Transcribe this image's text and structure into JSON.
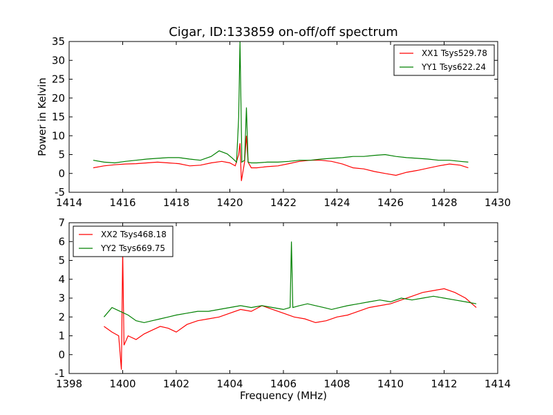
{
  "chart_data": [
    {
      "type": "line",
      "title": "Cigar, ID:133859 on-off/off spectrum",
      "xlabel": "",
      "ylabel": "Power in Kelvin",
      "xlim": [
        1414,
        1430
      ],
      "ylim": [
        -5,
        35
      ],
      "xticks": [
        1414,
        1416,
        1418,
        1420,
        1422,
        1424,
        1426,
        1428,
        1430
      ],
      "yticks": [
        -5,
        0,
        5,
        10,
        15,
        20,
        25,
        30,
        35
      ],
      "grid": false,
      "legend_position": "top-right",
      "series": [
        {
          "name": "XX1 Tsys529.78",
          "color": "#ff0000",
          "x": [
            1414.9,
            1415.3,
            1415.7,
            1416.1,
            1416.5,
            1416.9,
            1417.3,
            1417.7,
            1418.1,
            1418.5,
            1418.9,
            1419.3,
            1419.7,
            1420.0,
            1420.2,
            1420.33,
            1420.38,
            1420.43,
            1420.55,
            1420.62,
            1420.68,
            1420.8,
            1421.0,
            1421.4,
            1421.8,
            1422.2,
            1422.6,
            1423.0,
            1423.4,
            1423.8,
            1424.2,
            1424.6,
            1425.0,
            1425.4,
            1425.8,
            1426.2,
            1426.6,
            1427.0,
            1427.4,
            1427.8,
            1428.2,
            1428.6,
            1428.9
          ],
          "y": [
            1.5,
            2.0,
            2.3,
            2.5,
            2.6,
            2.8,
            3.0,
            2.8,
            2.6,
            2.0,
            2.2,
            2.8,
            3.2,
            2.8,
            2.0,
            5.0,
            8.0,
            -2.0,
            3.0,
            10.0,
            3.0,
            1.5,
            1.5,
            1.8,
            2.0,
            2.6,
            3.2,
            3.5,
            3.5,
            3.2,
            2.5,
            1.5,
            1.2,
            0.5,
            0.0,
            -0.5,
            0.3,
            0.8,
            1.4,
            2.0,
            2.5,
            2.2,
            1.5
          ]
        },
        {
          "name": "YY1 Tsys622.24",
          "color": "#008000",
          "x": [
            1414.9,
            1415.3,
            1415.7,
            1416.1,
            1416.5,
            1416.9,
            1417.3,
            1417.7,
            1418.1,
            1418.5,
            1418.9,
            1419.3,
            1419.6,
            1419.9,
            1420.1,
            1420.25,
            1420.33,
            1420.38,
            1420.45,
            1420.55,
            1420.62,
            1420.68,
            1420.8,
            1421.0,
            1421.4,
            1421.8,
            1422.2,
            1422.6,
            1423.0,
            1423.4,
            1423.8,
            1424.2,
            1424.6,
            1425.0,
            1425.4,
            1425.8,
            1426.2,
            1426.6,
            1427.0,
            1427.4,
            1427.8,
            1428.2,
            1428.6,
            1428.9
          ],
          "y": [
            3.5,
            3.0,
            2.8,
            3.2,
            3.5,
            3.8,
            4.0,
            4.2,
            4.2,
            3.8,
            3.5,
            4.5,
            6.0,
            5.2,
            4.0,
            3.0,
            15.0,
            35.0,
            3.0,
            3.5,
            17.5,
            3.0,
            2.8,
            2.8,
            3.0,
            3.0,
            3.2,
            3.5,
            3.5,
            3.8,
            4.0,
            4.2,
            4.5,
            4.5,
            4.8,
            5.0,
            4.5,
            4.2,
            4.0,
            3.8,
            3.5,
            3.5,
            3.2,
            3.0
          ]
        }
      ]
    },
    {
      "type": "line",
      "title": "",
      "xlabel": "Frequency (MHz)",
      "ylabel": "",
      "xlim": [
        1398,
        1414
      ],
      "ylim": [
        -1,
        7
      ],
      "xticks": [
        1398,
        1400,
        1402,
        1404,
        1406,
        1408,
        1410,
        1412,
        1414
      ],
      "yticks": [
        -1,
        0,
        1,
        2,
        3,
        4,
        5,
        6,
        7
      ],
      "grid": false,
      "legend_position": "top-left",
      "series": [
        {
          "name": "XX2 Tsys468.18",
          "color": "#ff0000",
          "x": [
            1399.3,
            1399.6,
            1399.85,
            1399.95,
            1400.0,
            1400.05,
            1400.2,
            1400.5,
            1400.8,
            1401.1,
            1401.4,
            1401.7,
            1402.0,
            1402.4,
            1402.8,
            1403.2,
            1403.6,
            1404.0,
            1404.4,
            1404.8,
            1405.2,
            1405.6,
            1406.0,
            1406.4,
            1406.8,
            1407.2,
            1407.6,
            1408.0,
            1408.4,
            1408.8,
            1409.2,
            1409.6,
            1410.0,
            1410.4,
            1410.8,
            1411.2,
            1411.6,
            1412.0,
            1412.4,
            1412.8,
            1413.2
          ],
          "y": [
            1.5,
            1.2,
            1.0,
            -0.8,
            5.5,
            0.5,
            1.0,
            0.8,
            1.1,
            1.3,
            1.5,
            1.4,
            1.2,
            1.6,
            1.8,
            1.9,
            2.0,
            2.2,
            2.4,
            2.3,
            2.6,
            2.4,
            2.2,
            2.0,
            1.9,
            1.7,
            1.8,
            2.0,
            2.1,
            2.3,
            2.5,
            2.6,
            2.7,
            2.9,
            3.1,
            3.3,
            3.4,
            3.5,
            3.3,
            3.0,
            2.5
          ]
        },
        {
          "name": "YY2 Tsys669.75",
          "color": "#008000",
          "x": [
            1399.3,
            1399.6,
            1399.9,
            1400.2,
            1400.5,
            1400.8,
            1401.1,
            1401.4,
            1401.7,
            1402.0,
            1402.4,
            1402.8,
            1403.2,
            1403.6,
            1404.0,
            1404.4,
            1404.8,
            1405.2,
            1405.6,
            1406.0,
            1406.25,
            1406.3,
            1406.35,
            1406.6,
            1406.9,
            1407.2,
            1407.5,
            1407.8,
            1408.1,
            1408.4,
            1408.8,
            1409.2,
            1409.6,
            1410.0,
            1410.4,
            1410.8,
            1411.2,
            1411.6,
            1412.0,
            1412.4,
            1412.8,
            1413.2
          ],
          "y": [
            2.0,
            2.5,
            2.3,
            2.1,
            1.8,
            1.7,
            1.8,
            1.9,
            2.0,
            2.1,
            2.2,
            2.3,
            2.3,
            2.4,
            2.5,
            2.6,
            2.5,
            2.6,
            2.5,
            2.4,
            2.5,
            6.0,
            2.5,
            2.6,
            2.7,
            2.6,
            2.5,
            2.4,
            2.5,
            2.6,
            2.7,
            2.8,
            2.9,
            2.8,
            3.0,
            2.9,
            3.0,
            3.1,
            3.0,
            2.9,
            2.8,
            2.7
          ]
        }
      ]
    }
  ]
}
